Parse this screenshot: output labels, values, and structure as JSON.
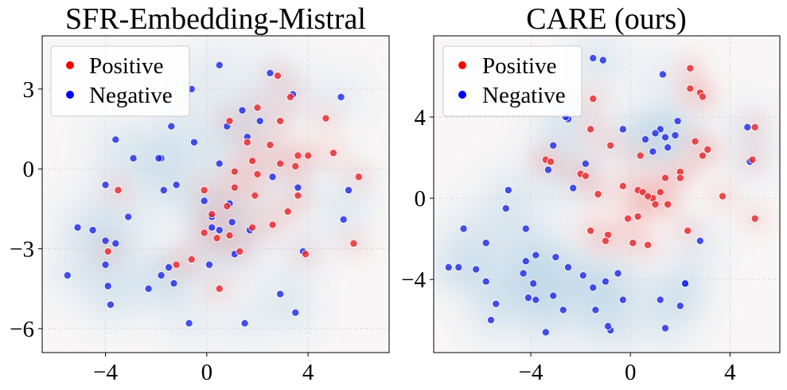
{
  "colors": {
    "positive": "#e8262b",
    "negative": "#1f2be6",
    "legend_positive": "#ff0000",
    "legend_negative": "#0000ff",
    "bg_negative_density": "#a9cbe3",
    "bg_positive_density": "#f3b3b3",
    "plot_bg": "#f8f6f6",
    "grid": "#d6d6d6"
  },
  "chart_data": [
    {
      "type": "scatter",
      "title": "SFR-Embedding-Mistral",
      "xlabel": "",
      "ylabel": "",
      "xlim": [
        -6.5,
        7.2
      ],
      "ylim": [
        -6.9,
        5.0
      ],
      "xticks": [
        -4,
        0,
        4
      ],
      "yticks": [
        3,
        0,
        -3,
        -6
      ],
      "grid": true,
      "legend_position": "top-left",
      "density_contours": true,
      "series": [
        {
          "name": "Positive",
          "points": [
            [
              2.0,
              2.3
            ],
            [
              3.3,
              2.7
            ],
            [
              2.9,
              1.8
            ],
            [
              4.7,
              1.9
            ],
            [
              1.6,
              1.0
            ],
            [
              2.5,
              0.9
            ],
            [
              3.6,
              0.5
            ],
            [
              4.0,
              0.5
            ],
            [
              5.0,
              0.6
            ],
            [
              1.8,
              0.3
            ],
            [
              2.9,
              0.2
            ],
            [
              3.5,
              0.1
            ],
            [
              1.1,
              -0.1
            ],
            [
              2.0,
              -0.2
            ],
            [
              6.0,
              -0.3
            ],
            [
              -3.5,
              -0.8
            ],
            [
              -0.1,
              -0.8
            ],
            [
              1.1,
              -0.7
            ],
            [
              1.9,
              -1.0
            ],
            [
              3.6,
              -1.0
            ],
            [
              0.8,
              -1.4
            ],
            [
              0.2,
              -1.7
            ],
            [
              3.2,
              -1.6
            ],
            [
              2.6,
              -2.1
            ],
            [
              1.8,
              -2.2
            ],
            [
              -0.1,
              -2.4
            ],
            [
              0.9,
              -2.5
            ],
            [
              0.4,
              -2.6
            ],
            [
              -3.9,
              -3.1
            ],
            [
              1.3,
              -3.1
            ],
            [
              -0.6,
              -3.4
            ],
            [
              -1.2,
              -3.6
            ],
            [
              3.9,
              -3.2
            ],
            [
              5.8,
              -2.8
            ],
            [
              0.5,
              -4.5
            ],
            [
              2.8,
              3.5
            ],
            [
              0.9,
              1.8
            ]
          ]
        },
        {
          "name": "Negative",
          "points": [
            [
              0.5,
              3.9
            ],
            [
              2.5,
              3.6
            ],
            [
              -0.6,
              3.0
            ],
            [
              3.4,
              2.8
            ],
            [
              5.3,
              2.7
            ],
            [
              1.4,
              2.2
            ],
            [
              0.8,
              1.6
            ],
            [
              2.1,
              1.8
            ],
            [
              -1.4,
              1.6
            ],
            [
              -3.6,
              1.1
            ],
            [
              -0.5,
              1.0
            ],
            [
              1.6,
              1.2
            ],
            [
              -2.9,
              0.4
            ],
            [
              -1.8,
              0.4
            ],
            [
              -1.9,
              0.4
            ],
            [
              0.5,
              0.2
            ],
            [
              2.6,
              -0.3
            ],
            [
              3.6,
              -0.7
            ],
            [
              -4.0,
              -0.6
            ],
            [
              -1.7,
              -0.8
            ],
            [
              -1.2,
              -0.6
            ],
            [
              -0.1,
              -1.2
            ],
            [
              0.9,
              -1.3
            ],
            [
              5.6,
              -0.8
            ],
            [
              -3.1,
              -1.8
            ],
            [
              -5.1,
              -2.2
            ],
            [
              -4.5,
              -2.3
            ],
            [
              -4.0,
              -2.7
            ],
            [
              -3.6,
              -2.8
            ],
            [
              0.2,
              -1.8
            ],
            [
              1.0,
              -2.0
            ],
            [
              1.7,
              -2.3
            ],
            [
              0.5,
              -2.3
            ],
            [
              0.2,
              -2.2
            ],
            [
              5.4,
              -1.9
            ],
            [
              -4.0,
              -3.6
            ],
            [
              -1.5,
              -3.7
            ],
            [
              1.1,
              -3.2
            ],
            [
              3.8,
              -3.1
            ],
            [
              -5.5,
              -4.0
            ],
            [
              -3.9,
              -4.4
            ],
            [
              -2.3,
              -4.5
            ],
            [
              -1.3,
              -4.3
            ],
            [
              -1.8,
              -4.0
            ],
            [
              0.1,
              -3.6
            ],
            [
              -3.8,
              -5.1
            ],
            [
              2.9,
              -4.7
            ],
            [
              3.5,
              -5.4
            ],
            [
              -0.7,
              -5.8
            ],
            [
              1.5,
              -5.8
            ]
          ]
        }
      ]
    },
    {
      "type": "scatter",
      "title": "CARE (ours)",
      "xlabel": "",
      "ylabel": "",
      "xlim": [
        -7.9,
        6.0
      ],
      "ylim": [
        -7.6,
        8.0
      ],
      "xticks": [
        -4,
        0,
        4
      ],
      "yticks": [
        4,
        0,
        -4
      ],
      "grid": true,
      "legend_position": "top-left",
      "density_contours": true,
      "series": [
        {
          "name": "Positive",
          "points": [
            [
              2.4,
              6.4
            ],
            [
              2.4,
              5.4
            ],
            [
              2.8,
              5.2
            ],
            [
              2.9,
              5.0
            ],
            [
              -1.5,
              4.9
            ],
            [
              -1.6,
              3.4
            ],
            [
              -0.8,
              2.6
            ],
            [
              2.6,
              2.8
            ],
            [
              3.1,
              2.4
            ],
            [
              0.4,
              2.1
            ],
            [
              2.9,
              2.1
            ],
            [
              5.0,
              3.5
            ],
            [
              4.9,
              1.9
            ],
            [
              2.0,
              1.3
            ],
            [
              -3.4,
              1.9
            ],
            [
              -3.2,
              1.8
            ],
            [
              -2.0,
              1.2
            ],
            [
              -1.8,
              1.1
            ],
            [
              1.4,
              1.0
            ],
            [
              2.0,
              1.0
            ],
            [
              -0.3,
              0.6
            ],
            [
              0.3,
              0.4
            ],
            [
              -1.3,
              0.2
            ],
            [
              0.5,
              0.3
            ],
            [
              1.2,
              0.3
            ],
            [
              0.9,
              0.0
            ],
            [
              0.7,
              0.1
            ],
            [
              1.0,
              -0.3
            ],
            [
              1.5,
              -0.3
            ],
            [
              3.7,
              0.1
            ],
            [
              5.0,
              -1.0
            ],
            [
              0.3,
              -0.9
            ],
            [
              -0.1,
              -1.0
            ],
            [
              -1.6,
              -1.6
            ],
            [
              -0.9,
              -1.8
            ],
            [
              2.3,
              -1.6
            ],
            [
              -1.0,
              -2.1
            ],
            [
              0.7,
              -2.3
            ],
            [
              0.1,
              -2.2
            ]
          ]
        },
        {
          "name": "Negative",
          "points": [
            [
              -1.5,
              6.9
            ],
            [
              -1.1,
              6.8
            ],
            [
              1.3,
              6.1
            ],
            [
              -2.5,
              3.9
            ],
            [
              -0.3,
              3.4
            ],
            [
              1.2,
              3.4
            ],
            [
              1.9,
              3.8
            ],
            [
              0.6,
              2.9
            ],
            [
              1.0,
              3.2
            ],
            [
              1.4,
              3.0
            ],
            [
              1.8,
              3.1
            ],
            [
              -3.1,
              2.6
            ],
            [
              -2.6,
              4.0
            ],
            [
              0.9,
              2.3
            ],
            [
              1.5,
              2.5
            ],
            [
              4.7,
              3.5
            ],
            [
              4.8,
              1.8
            ],
            [
              -3.3,
              1.4
            ],
            [
              -2.3,
              0.5
            ],
            [
              -1.8,
              1.7
            ],
            [
              -4.9,
              0.4
            ],
            [
              -5.0,
              -0.5
            ],
            [
              -6.7,
              -1.5
            ],
            [
              -5.8,
              -2.2
            ],
            [
              -4.2,
              -1.5
            ],
            [
              -3.8,
              -2.8
            ],
            [
              -4.2,
              -3.1
            ],
            [
              -3.0,
              -2.9
            ],
            [
              -4.3,
              -3.7
            ],
            [
              -7.3,
              -3.4
            ],
            [
              -6.9,
              -3.4
            ],
            [
              -6.2,
              -3.5
            ],
            [
              -5.8,
              -4.1
            ],
            [
              -2.5,
              -3.4
            ],
            [
              -1.9,
              -3.8
            ],
            [
              -3.9,
              -4.2
            ],
            [
              -3.1,
              -4.8
            ],
            [
              -1.0,
              -4.1
            ],
            [
              -0.5,
              -3.7
            ],
            [
              -1.5,
              -4.4
            ],
            [
              -5.4,
              -5.2
            ],
            [
              -4.1,
              -4.9
            ],
            [
              -3.8,
              -5.0
            ],
            [
              -5.6,
              -6.0
            ],
            [
              -2.7,
              -5.5
            ],
            [
              -1.4,
              -5.5
            ],
            [
              -0.8,
              -6.5
            ],
            [
              -0.9,
              -6.3
            ],
            [
              -3.4,
              -6.6
            ],
            [
              2.2,
              -4.2
            ],
            [
              2.2,
              -4.2
            ],
            [
              1.2,
              -5.0
            ],
            [
              2.0,
              -5.3
            ],
            [
              1.4,
              -6.4
            ],
            [
              -0.3,
              -5.0
            ],
            [
              2.8,
              -2.1
            ]
          ]
        }
      ]
    }
  ]
}
